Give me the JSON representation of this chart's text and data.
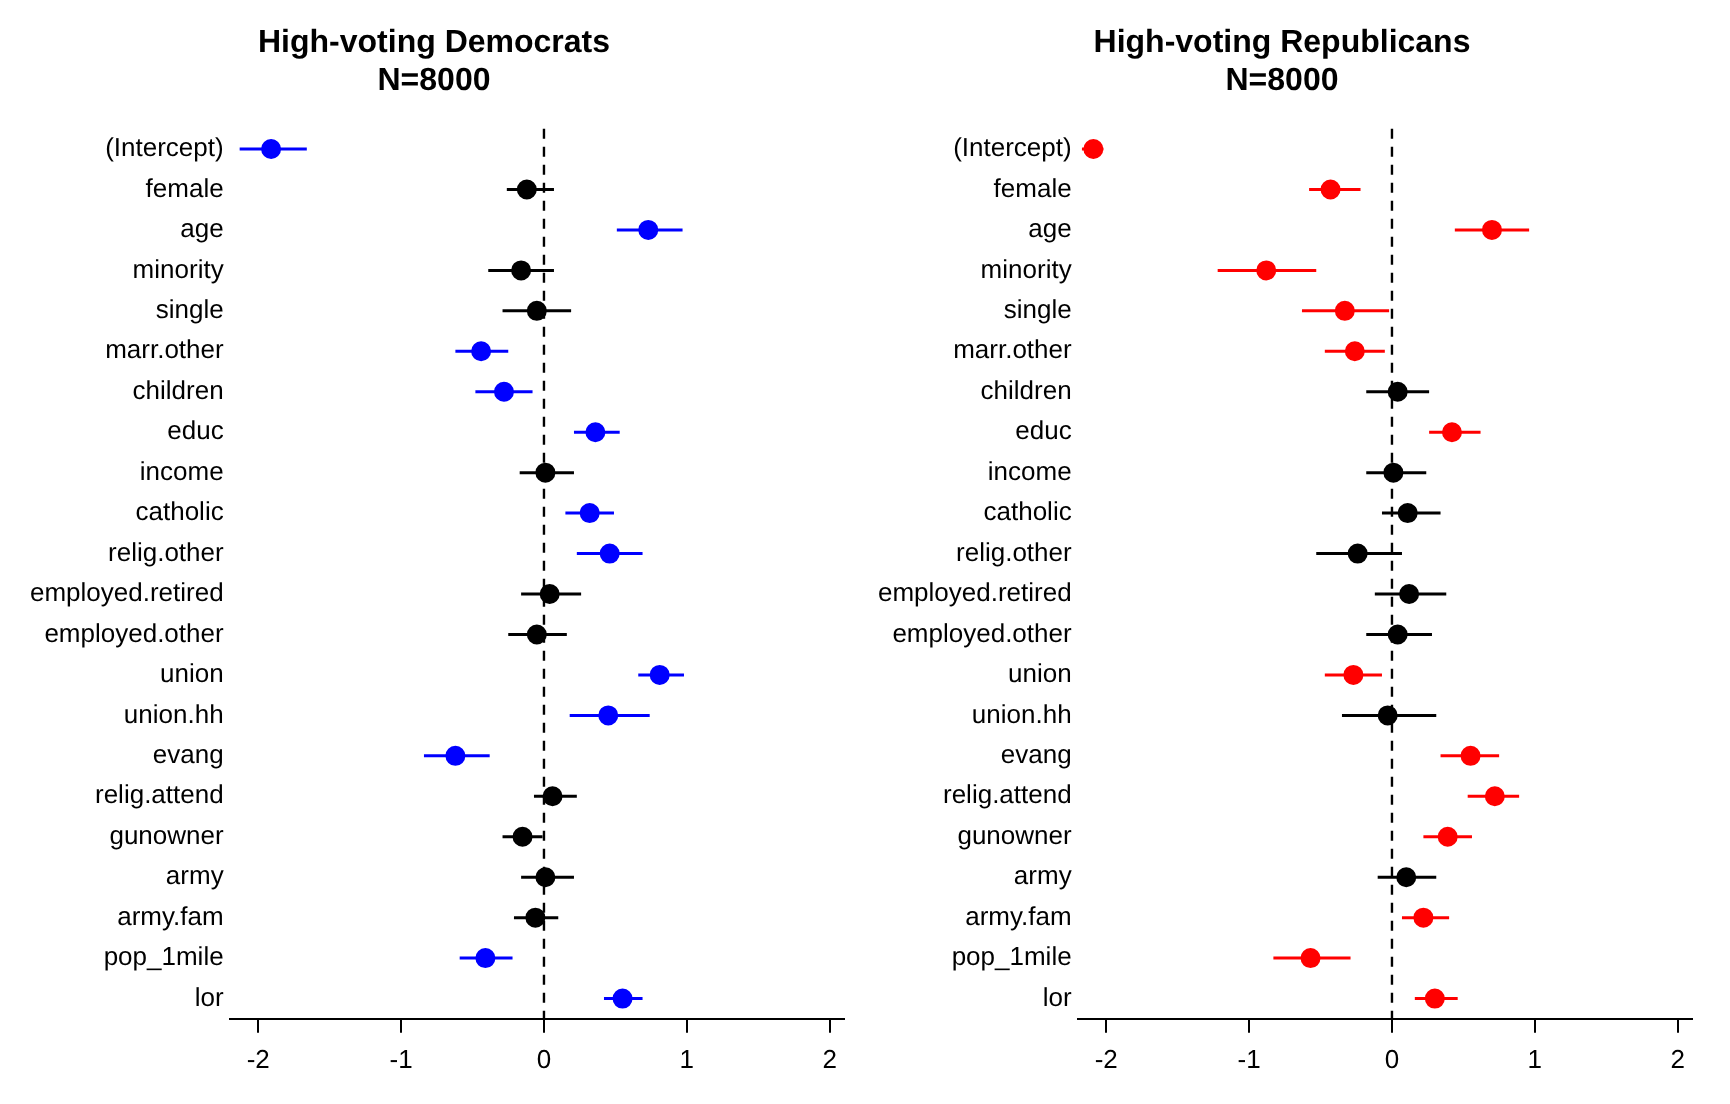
{
  "chart_data": [
    {
      "type": "scatter",
      "orientation": "horizontal",
      "title": "High-voting Democrats",
      "subtitle": "N=8000",
      "categories": [
        "(Intercept)",
        "female",
        "age",
        "minority",
        "single",
        "marr.other",
        "children",
        "educ",
        "income",
        "catholic",
        "relig.other",
        "employed.retired",
        "employed.other",
        "union",
        "union.hh",
        "evang",
        "relig.attend",
        "gunowner",
        "army",
        "army.fam",
        "pop_1mile",
        "lor"
      ],
      "values": [
        -1.91,
        -0.12,
        0.73,
        -0.16,
        -0.05,
        -0.44,
        -0.28,
        0.36,
        0.01,
        0.32,
        0.46,
        0.04,
        -0.05,
        0.81,
        0.45,
        -0.62,
        0.06,
        -0.15,
        0.01,
        -0.06,
        -0.41,
        0.55
      ],
      "errors": [
        [
          -2.13,
          -1.66
        ],
        [
          -0.26,
          0.07
        ],
        [
          0.51,
          0.97
        ],
        [
          -0.39,
          0.07
        ],
        [
          -0.29,
          0.19
        ],
        [
          -0.62,
          -0.25
        ],
        [
          -0.48,
          -0.08
        ],
        [
          0.21,
          0.53
        ],
        [
          -0.17,
          0.21
        ],
        [
          0.15,
          0.49
        ],
        [
          0.23,
          0.69
        ],
        [
          -0.16,
          0.26
        ],
        [
          -0.25,
          0.16
        ],
        [
          0.66,
          0.98
        ],
        [
          0.18,
          0.74
        ],
        [
          -0.84,
          -0.38
        ],
        [
          -0.07,
          0.23
        ],
        [
          -0.29,
          -0.01
        ],
        [
          -0.16,
          0.21
        ],
        [
          -0.21,
          0.1
        ],
        [
          -0.59,
          -0.22
        ],
        [
          0.42,
          0.69
        ]
      ],
      "colors": [
        "#0000ff",
        "#000000",
        "#0000ff",
        "#000000",
        "#000000",
        "#0000ff",
        "#0000ff",
        "#0000ff",
        "#000000",
        "#0000ff",
        "#0000ff",
        "#000000",
        "#000000",
        "#0000ff",
        "#0000ff",
        "#0000ff",
        "#000000",
        "#000000",
        "#000000",
        "#000000",
        "#0000ff",
        "#0000ff"
      ],
      "xlim": [
        -2.2,
        2.1
      ],
      "xticks": [
        -2,
        -1,
        0,
        1,
        2
      ],
      "ref_lines": [
        {
          "axis": "x",
          "value": 0,
          "line_style": "dashed",
          "color": "#000000"
        }
      ],
      "marker": "circle",
      "grid": false,
      "legend": false
    },
    {
      "type": "scatter",
      "orientation": "horizontal",
      "title": "High-voting Republicans",
      "subtitle": "N=8000",
      "categories": [
        "(Intercept)",
        "female",
        "age",
        "minority",
        "single",
        "marr.other",
        "children",
        "educ",
        "income",
        "catholic",
        "relig.other",
        "employed.retired",
        "employed.other",
        "union",
        "union.hh",
        "evang",
        "relig.attend",
        "gunowner",
        "army",
        "army.fam",
        "pop_1mile",
        "lor"
      ],
      "values": [
        -2.09,
        -0.43,
        0.7,
        -0.88,
        -0.33,
        -0.26,
        0.04,
        0.42,
        0.01,
        0.11,
        -0.24,
        0.12,
        0.04,
        -0.27,
        -0.03,
        0.55,
        0.72,
        0.39,
        0.1,
        0.22,
        -0.57,
        0.3
      ],
      "errors": [
        [
          -2.17,
          -2.02
        ],
        [
          -0.58,
          -0.22
        ],
        [
          0.44,
          0.96
        ],
        [
          -1.22,
          -0.53
        ],
        [
          -0.63,
          -0.02
        ],
        [
          -0.47,
          -0.05
        ],
        [
          -0.18,
          0.26
        ],
        [
          0.26,
          0.62
        ],
        [
          -0.18,
          0.24
        ],
        [
          -0.07,
          0.34
        ],
        [
          -0.53,
          0.07
        ],
        [
          -0.12,
          0.38
        ],
        [
          -0.18,
          0.28
        ],
        [
          -0.47,
          -0.07
        ],
        [
          -0.35,
          0.31
        ],
        [
          0.34,
          0.75
        ],
        [
          0.53,
          0.89
        ],
        [
          0.22,
          0.56
        ],
        [
          -0.1,
          0.31
        ],
        [
          0.07,
          0.4
        ],
        [
          -0.83,
          -0.29
        ],
        [
          0.16,
          0.46
        ]
      ],
      "colors": [
        "#ff0000",
        "#ff0000",
        "#ff0000",
        "#ff0000",
        "#ff0000",
        "#ff0000",
        "#000000",
        "#ff0000",
        "#000000",
        "#000000",
        "#000000",
        "#000000",
        "#000000",
        "#ff0000",
        "#000000",
        "#ff0000",
        "#ff0000",
        "#ff0000",
        "#000000",
        "#ff0000",
        "#ff0000",
        "#ff0000"
      ],
      "xlim": [
        -2.2,
        2.1
      ],
      "xticks": [
        -2,
        -1,
        0,
        1,
        2
      ],
      "ref_lines": [
        {
          "axis": "x",
          "value": 0,
          "line_style": "dashed",
          "color": "#000000"
        }
      ],
      "marker": "circle",
      "grid": false,
      "legend": false
    }
  ]
}
